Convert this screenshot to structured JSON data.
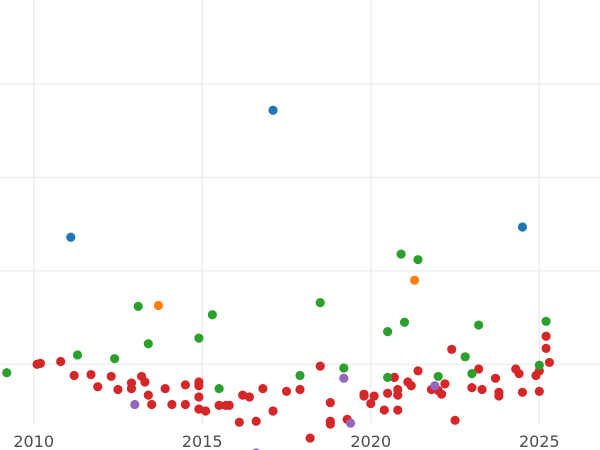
{
  "chart_data": {
    "type": "scatter",
    "title": "",
    "xlabel": "",
    "ylabel": "",
    "xlim": [
      2009.0,
      2026.8
    ],
    "ylim": [
      0.35,
      4.9
    ],
    "grid": true,
    "legend": "none",
    "x_ticks": [
      2010,
      2015,
      2020,
      2025
    ],
    "x_tick_labels": [
      "2010",
      "2015",
      "2020",
      "2025"
    ],
    "y_ticks": [
      1,
      2,
      3,
      4
    ],
    "series": [
      {
        "color": "#d62728",
        "points": [
          [
            2010.1,
            1.0
          ],
          [
            2010.2,
            1.01
          ],
          [
            2010.8,
            1.03
          ],
          [
            2011.2,
            0.88
          ],
          [
            2011.7,
            0.89
          ],
          [
            2011.9,
            0.76
          ],
          [
            2012.3,
            0.87
          ],
          [
            2012.5,
            0.73
          ],
          [
            2012.9,
            0.8
          ],
          [
            2012.9,
            0.74
          ],
          [
            2013.2,
            0.87
          ],
          [
            2013.3,
            0.81
          ],
          [
            2013.4,
            0.67
          ],
          [
            2013.5,
            0.57
          ],
          [
            2013.9,
            0.74
          ],
          [
            2014.1,
            0.57
          ],
          [
            2014.5,
            0.78
          ],
          [
            2014.5,
            0.57
          ],
          [
            2014.9,
            0.81
          ],
          [
            2014.9,
            0.77
          ],
          [
            2014.9,
            0.65
          ],
          [
            2014.9,
            0.52
          ],
          [
            2015.1,
            0.5
          ],
          [
            2015.5,
            0.56
          ],
          [
            2015.7,
            0.56
          ],
          [
            2015.8,
            0.56
          ],
          [
            2016.1,
            0.38
          ],
          [
            2016.2,
            0.67
          ],
          [
            2016.4,
            0.65
          ],
          [
            2016.6,
            0.39
          ],
          [
            2016.8,
            0.74
          ],
          [
            2017.1,
            0.5
          ],
          [
            2017.5,
            0.71
          ],
          [
            2017.9,
            0.73
          ],
          [
            2018.2,
            0.21
          ],
          [
            2018.5,
            0.98
          ],
          [
            2018.8,
            0.59
          ],
          [
            2018.8,
            0.39
          ],
          [
            2018.8,
            0.36
          ],
          [
            2019.3,
            0.41
          ],
          [
            2019.8,
            0.68
          ],
          [
            2019.8,
            0.66
          ],
          [
            2020.0,
            0.58
          ],
          [
            2020.1,
            0.66
          ],
          [
            2020.4,
            0.51
          ],
          [
            2020.5,
            0.69
          ],
          [
            2020.7,
            0.86
          ],
          [
            2020.8,
            0.73
          ],
          [
            2020.8,
            0.67
          ],
          [
            2020.8,
            0.51
          ],
          [
            2021.1,
            0.81
          ],
          [
            2021.2,
            0.77
          ],
          [
            2021.4,
            0.93
          ],
          [
            2021.8,
            0.73
          ],
          [
            2022.0,
            0.72
          ],
          [
            2022.1,
            0.68
          ],
          [
            2022.2,
            0.79
          ],
          [
            2022.4,
            1.16
          ],
          [
            2022.5,
            0.4
          ],
          [
            2023.0,
            0.75
          ],
          [
            2023.2,
            0.95
          ],
          [
            2023.3,
            0.73
          ],
          [
            2023.7,
            0.85
          ],
          [
            2023.8,
            0.7
          ],
          [
            2023.8,
            0.66
          ],
          [
            2024.3,
            0.95
          ],
          [
            2024.4,
            0.9
          ],
          [
            2024.5,
            0.7
          ],
          [
            2024.9,
            0.88
          ],
          [
            2025.0,
            0.93
          ],
          [
            2025.0,
            0.71
          ],
          [
            2025.2,
            1.3
          ],
          [
            2025.2,
            1.17
          ],
          [
            2025.3,
            1.02
          ]
        ]
      },
      {
        "color": "#2ca02c",
        "points": [
          [
            2009.2,
            0.91
          ],
          [
            2011.3,
            1.1
          ],
          [
            2012.4,
            1.06
          ],
          [
            2013.1,
            1.62
          ],
          [
            2013.4,
            1.22
          ],
          [
            2014.9,
            1.28
          ],
          [
            2015.3,
            1.53
          ],
          [
            2015.5,
            0.74
          ],
          [
            2017.9,
            0.88
          ],
          [
            2018.5,
            1.66
          ],
          [
            2019.2,
            0.96
          ],
          [
            2020.5,
            0.86
          ],
          [
            2020.5,
            1.35
          ],
          [
            2020.9,
            2.18
          ],
          [
            2021.0,
            1.45
          ],
          [
            2021.4,
            2.12
          ],
          [
            2022.0,
            0.87
          ],
          [
            2022.8,
            1.08
          ],
          [
            2023.0,
            0.9
          ],
          [
            2023.2,
            1.42
          ],
          [
            2025.0,
            0.99
          ],
          [
            2025.2,
            1.46
          ]
        ]
      },
      {
        "color": "#1f77b4",
        "points": [
          [
            2011.1,
            2.36
          ],
          [
            2017.1,
            3.72
          ],
          [
            2024.5,
            2.47
          ]
        ]
      },
      {
        "color": "#ff7f0e",
        "points": [
          [
            2013.7,
            1.63
          ],
          [
            2021.3,
            1.9
          ]
        ]
      },
      {
        "color": "#9467bd",
        "points": [
          [
            2013.0,
            0.57
          ],
          [
            2016.6,
            0.05
          ],
          [
            2019.2,
            0.85
          ],
          [
            2019.4,
            0.37
          ],
          [
            2021.9,
            0.77
          ]
        ]
      }
    ]
  }
}
